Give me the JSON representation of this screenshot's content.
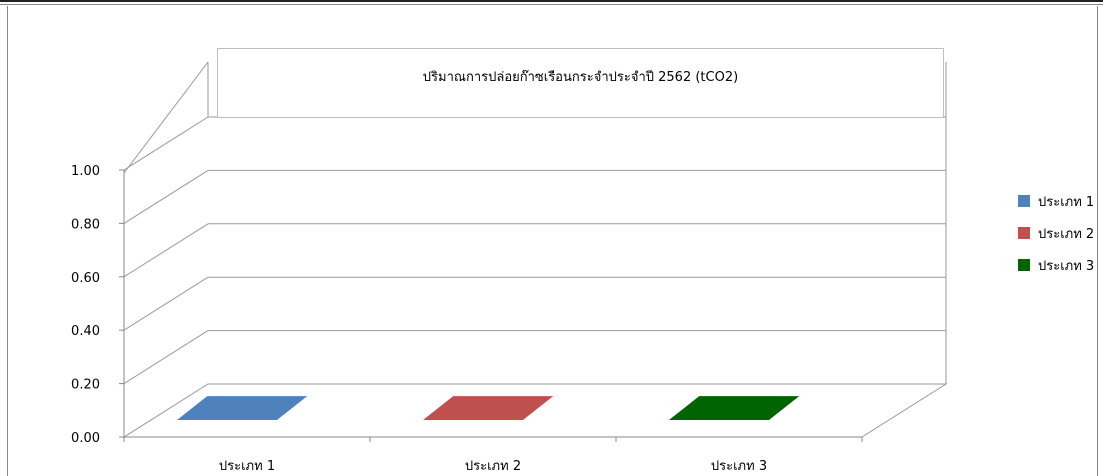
{
  "chart_data": {
    "type": "bar",
    "title": "ปริมาณการปล่อยก๊าซเรือนกระจำประจำปี 2562 (tCO2)",
    "categories": [
      "ประเภท 1",
      "ประเภท 2",
      "ประเภท 3"
    ],
    "series": [
      {
        "name": "ประเภท 1",
        "values": [
          0,
          null,
          null
        ],
        "color": "#4f81bd"
      },
      {
        "name": "ประเภท 2",
        "values": [
          null,
          0,
          null
        ],
        "color": "#c0504d"
      },
      {
        "name": "ประเภท 3",
        "values": [
          null,
          null,
          0
        ],
        "color": "#006400"
      }
    ],
    "yticks": [
      "0.00",
      "0.20",
      "0.40",
      "0.60",
      "0.80",
      "1.00"
    ],
    "ylim": [
      0,
      1
    ],
    "grid": true,
    "legend": "right",
    "style": "3d-column"
  }
}
